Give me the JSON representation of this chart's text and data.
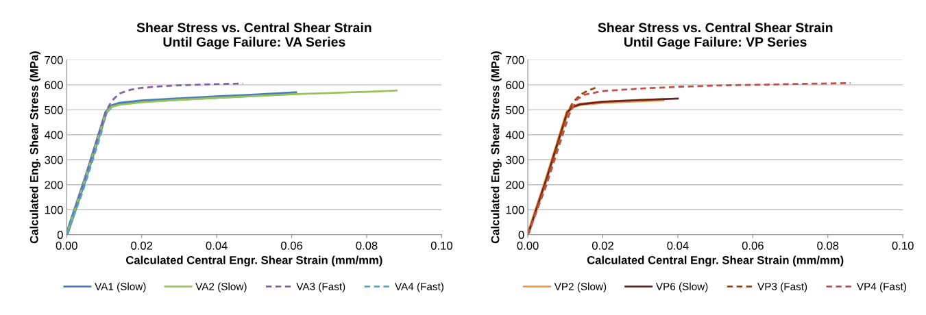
{
  "chart_data": [
    {
      "type": "line",
      "title": "Shear Stress vs. Central Shear Strain\nUntil Gage Failure: VA Series",
      "xlabel": "Calculated Central Engr. Shear Strain (mm/mm)",
      "ylabel": "Calculated Eng. Shear Stress (MPa)",
      "xlim": [
        0,
        0.1
      ],
      "ylim": [
        0,
        700
      ],
      "xticks": [
        {
          "value": 0,
          "label": "0.00"
        },
        {
          "value": 0.02,
          "label": "0.02"
        },
        {
          "value": 0.04,
          "label": "0.04"
        },
        {
          "value": 0.06,
          "label": "0.06"
        },
        {
          "value": 0.08,
          "label": "0.08"
        },
        {
          "value": 0.1,
          "label": "0.10"
        }
      ],
      "yticks": [
        0,
        100,
        200,
        300,
        400,
        500,
        600,
        700
      ],
      "grid": "y",
      "legend": "bottom",
      "marker": "none",
      "series": [
        {
          "name": "VA1 (Slow)",
          "color": "#4a7ebb",
          "line_style": "solid",
          "x": [
            0,
            0.005,
            0.0105,
            0.012,
            0.014,
            0.02,
            0.03,
            0.04,
            0.05,
            0.061
          ],
          "values": [
            0,
            225,
            490,
            515,
            525,
            535,
            543,
            551,
            558,
            567
          ]
        },
        {
          "name": "VA2 (Slow)",
          "color": "#98c455",
          "line_style": "solid",
          "x": [
            0,
            0.005,
            0.0105,
            0.012,
            0.014,
            0.02,
            0.03,
            0.04,
            0.05,
            0.06,
            0.07,
            0.08,
            0.088
          ],
          "values": [
            0,
            225,
            490,
            512,
            520,
            530,
            540,
            548,
            555,
            562,
            567,
            572,
            577
          ]
        },
        {
          "name": "VA3 (Fast)",
          "color": "#8064a2",
          "line_style": "dashed",
          "x": [
            0,
            0.005,
            0.0105,
            0.012,
            0.014,
            0.017,
            0.02,
            0.025,
            0.03,
            0.04,
            0.047
          ],
          "values": [
            0,
            225,
            495,
            535,
            565,
            580,
            588,
            594,
            598,
            603,
            605
          ]
        },
        {
          "name": "VA4 (Fast)",
          "color": "#4bacc6",
          "line_style": "dashed",
          "x": [
            0,
            0.004,
            0.007,
            0.0095
          ],
          "values": [
            0,
            160,
            300,
            420
          ]
        }
      ]
    },
    {
      "type": "line",
      "title": "Shear Stress vs. Central Shear Strain\nUntil Gage Failure: VP Series",
      "xlabel": "Calculated Central Engr. Shear Strain (mm/mm)",
      "ylabel": "Calculated Eng. Shear Stress (MPa)",
      "xlim": [
        0,
        0.1
      ],
      "ylim": [
        0,
        700
      ],
      "xticks": [
        {
          "value": 0,
          "label": "0.00"
        },
        {
          "value": 0.02,
          "label": "0.02"
        },
        {
          "value": 0.04,
          "label": "0.04"
        },
        {
          "value": 0.06,
          "label": "0.06"
        },
        {
          "value": 0.08,
          "label": "0.08"
        },
        {
          "value": 0.1,
          "label": "0.10"
        }
      ],
      "yticks": [
        0,
        100,
        200,
        300,
        400,
        500,
        600,
        700
      ],
      "grid": "y",
      "legend": "bottom",
      "marker": "none",
      "series": [
        {
          "name": "VP2 (Slow)",
          "color": "#f79646",
          "line_style": "solid",
          "x": [
            0,
            0.005,
            0.0105,
            0.012,
            0.014,
            0.02,
            0.03,
            0.036
          ],
          "values": [
            0,
            225,
            490,
            512,
            522,
            530,
            537,
            540
          ]
        },
        {
          "name": "VP6 (Slow)",
          "color": "#632523",
          "line_style": "solid",
          "x": [
            0,
            0.005,
            0.0105,
            0.012,
            0.014,
            0.02,
            0.03,
            0.04
          ],
          "values": [
            0,
            225,
            490,
            512,
            522,
            532,
            539,
            545
          ]
        },
        {
          "name": "VP3 (Fast)",
          "color": "#984807",
          "line_style": "dashed",
          "x": [
            0,
            0.005,
            0.0105,
            0.012,
            0.014,
            0.016,
            0.018
          ],
          "values": [
            0,
            215,
            485,
            530,
            560,
            577,
            588
          ]
        },
        {
          "name": "VP4 (Fast)",
          "color": "#c0504d",
          "line_style": "dashed",
          "x": [
            0,
            0.005,
            0.011,
            0.013,
            0.015,
            0.02,
            0.03,
            0.04,
            0.05,
            0.06,
            0.07,
            0.086
          ],
          "values": [
            0,
            200,
            480,
            540,
            560,
            575,
            585,
            592,
            597,
            600,
            603,
            607
          ]
        }
      ]
    }
  ]
}
